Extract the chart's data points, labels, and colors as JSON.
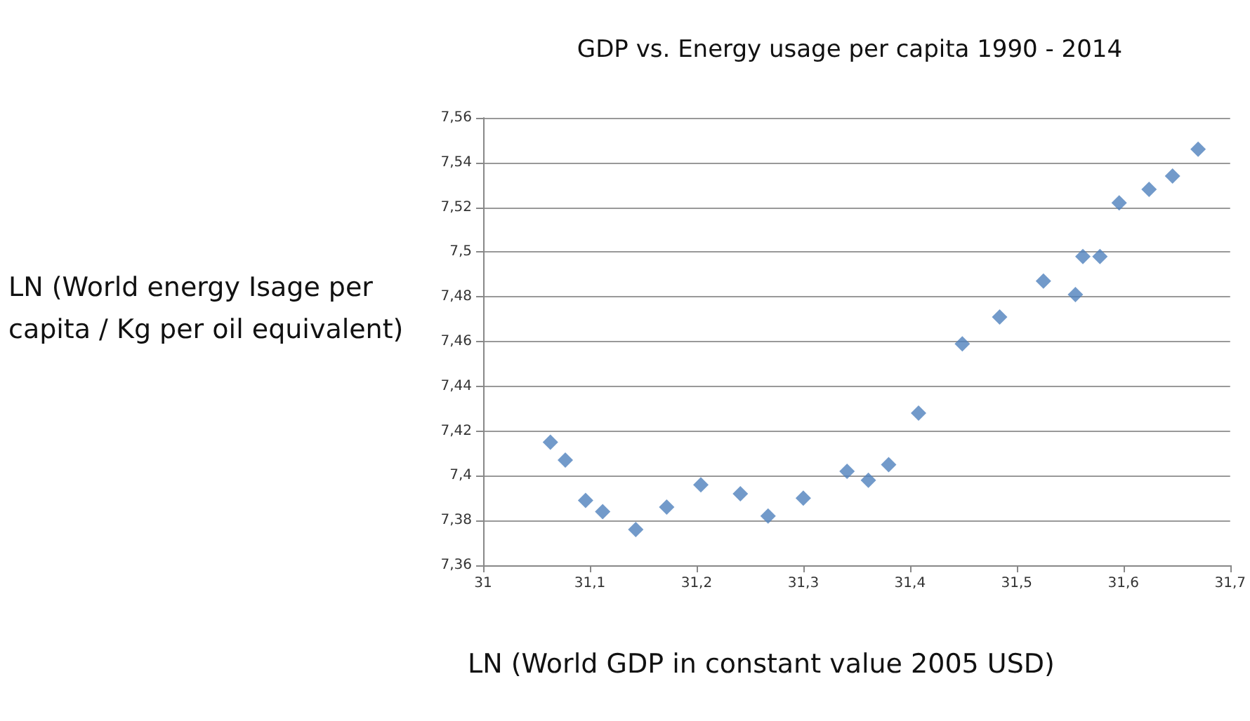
{
  "chart_data": {
    "type": "scatter",
    "title": "GDP vs. Energy usage per capita 1990 - 2014",
    "xlabel": "LN (World GDP in constant value 2005 USD)",
    "ylabel": "LN (World energy Isage per capita / Kg per oil equivalent)",
    "x": [
      31.063,
      31.077,
      31.096,
      31.112,
      31.143,
      31.172,
      31.204,
      31.241,
      31.267,
      31.3,
      31.341,
      31.361,
      31.38,
      31.408,
      31.449,
      31.484,
      31.525,
      31.555,
      31.562,
      31.578,
      31.596,
      31.624,
      31.646,
      31.67
    ],
    "series": [
      {
        "color": "#4f81bd",
        "values": [
          7.415,
          7.407,
          7.389,
          7.384,
          7.376,
          7.386,
          7.396,
          7.392,
          7.382,
          7.39,
          7.402,
          7.398,
          7.405,
          7.428,
          7.459,
          7.471,
          7.487,
          7.481,
          7.498,
          7.498,
          7.522,
          7.528,
          7.534,
          7.546
        ]
      }
    ],
    "xlim": [
      31,
      31.7
    ],
    "xticks": [
      31,
      {
        "value": 31.1,
        "label": "31,1"
      },
      {
        "value": 31.2,
        "label": "31,2"
      },
      {
        "value": 31.3,
        "label": "31,3"
      },
      {
        "value": 31.4,
        "label": "31,4"
      },
      {
        "value": 31.5,
        "label": "31,5"
      },
      {
        "value": 31.6,
        "label": "31,6"
      },
      {
        "value": 31.7,
        "label": "31,7"
      }
    ],
    "ylim": [
      7.36,
      7.56
    ],
    "yticks": [
      {
        "value": 7.36,
        "label": "7,36"
      },
      {
        "value": 7.38,
        "label": "7,38"
      },
      {
        "value": 7.4,
        "label": "7,4"
      },
      {
        "value": 7.42,
        "label": "7,42"
      },
      {
        "value": 7.44,
        "label": "7,44"
      },
      {
        "value": 7.46,
        "label": "7,46"
      },
      {
        "value": 7.48,
        "label": "7,48"
      },
      {
        "value": 7.5,
        "label": "7,5"
      },
      {
        "value": 7.52,
        "label": "7,52"
      },
      {
        "value": 7.54,
        "label": "7,54"
      },
      {
        "value": 7.56,
        "label": "7,56"
      }
    ],
    "grid": "y",
    "marker": "diamond"
  }
}
